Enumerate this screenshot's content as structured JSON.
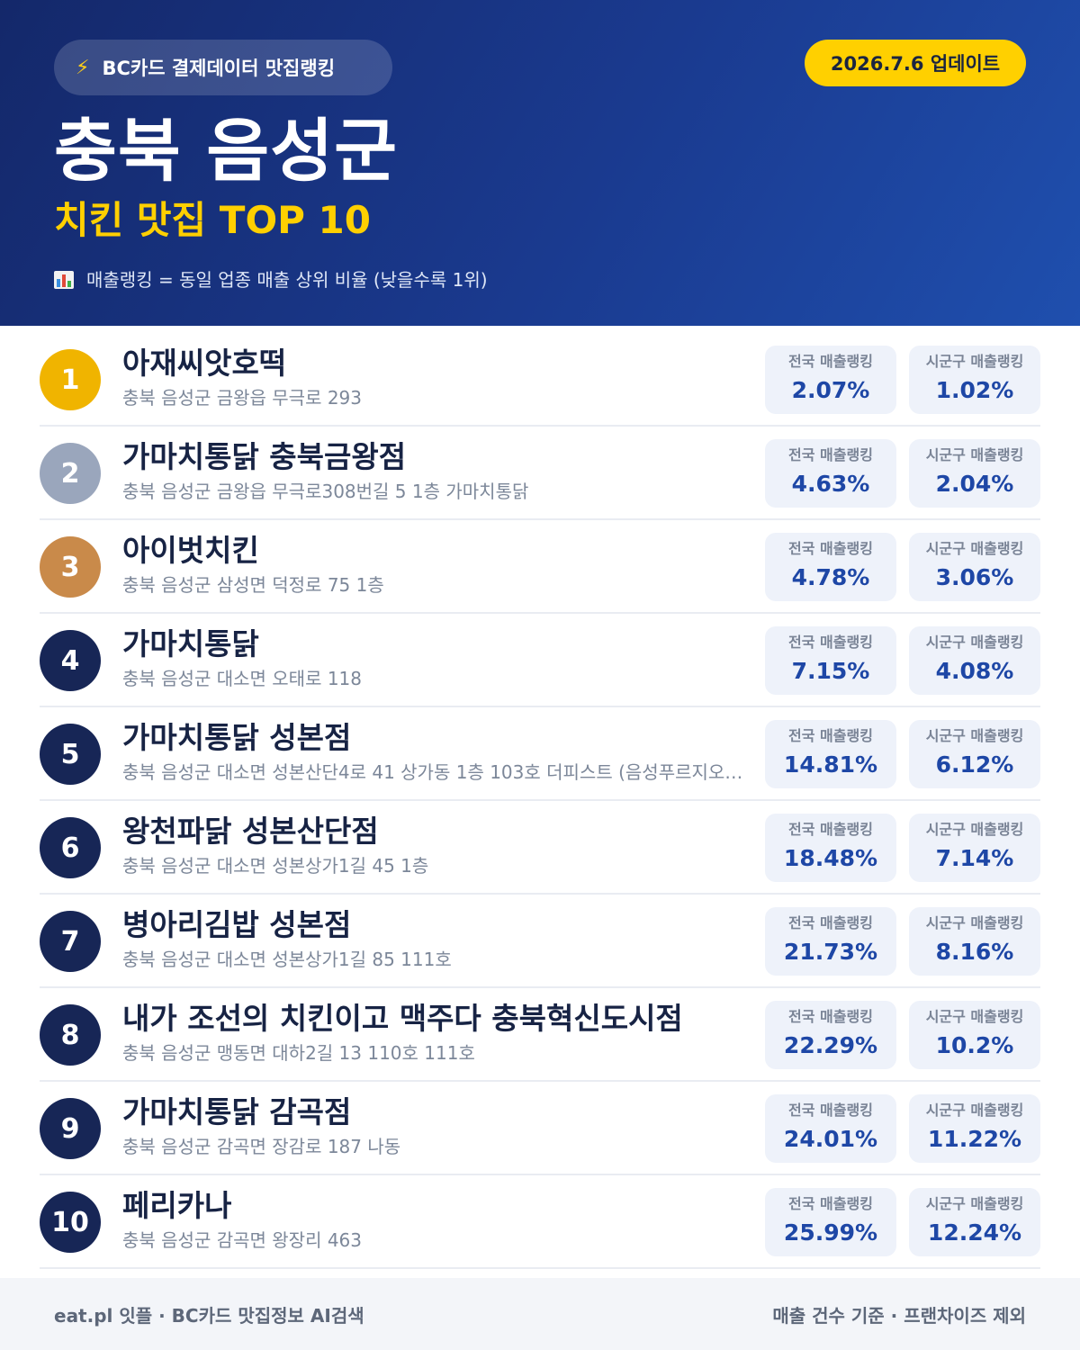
{
  "header": {
    "source_label": "BC카드 결제데이터 맛집랭킹",
    "update_label": "2026.7.6 업데이트",
    "title": "충북 음성군",
    "subtitle": "치킨 맛집 TOP 10",
    "note": "매출랭킹 = 동일 업종 매출 상위 비율 (낮을수록 1위)",
    "source_icon": "lightning-icon",
    "note_icon": "bar-chart-icon"
  },
  "stat_labels": {
    "national": "전국 매출랭킹",
    "regional": "시군구 매출랭킹"
  },
  "rank_colors": {
    "gold": "#f0b400",
    "silver": "#9aa6bc",
    "bronze": "#c98a4a",
    "default": "#172656"
  },
  "restaurants": [
    {
      "rank": "1",
      "name": "아재씨앗호떡",
      "address": "충북 음성군 금왕읍 무극로 293",
      "national": "2.07%",
      "regional": "1.02%"
    },
    {
      "rank": "2",
      "name": "가마치통닭 충북금왕점",
      "address": "충북 음성군 금왕읍 무극로308번길 5 1층 가마치통닭",
      "national": "4.63%",
      "regional": "2.04%"
    },
    {
      "rank": "3",
      "name": "아이벗치킨",
      "address": "충북 음성군 삼성면 덕정로 75 1층",
      "national": "4.78%",
      "regional": "3.06%"
    },
    {
      "rank": "4",
      "name": "가마치통닭",
      "address": "충북 음성군 대소면 오태로 118",
      "national": "7.15%",
      "regional": "4.08%"
    },
    {
      "rank": "5",
      "name": "가마치통닭 성본점",
      "address": "충북 음성군 대소면 성본산단4로 41 상가동 1층 103호 더피스트 (음성푸르지오…",
      "national": "14.81%",
      "regional": "6.12%"
    },
    {
      "rank": "6",
      "name": "왕천파닭 성본산단점",
      "address": "충북 음성군 대소면 성본상가1길 45 1층",
      "national": "18.48%",
      "regional": "7.14%"
    },
    {
      "rank": "7",
      "name": "병아리김밥 성본점",
      "address": "충북 음성군 대소면 성본상가1길 85 111호",
      "national": "21.73%",
      "regional": "8.16%"
    },
    {
      "rank": "8",
      "name": "내가 조선의 치킨이고 맥주다 충북혁신도시점",
      "address": "충북 음성군 맹동면 대하2길 13 110호 111호",
      "national": "22.29%",
      "regional": "10.2%"
    },
    {
      "rank": "9",
      "name": "가마치통닭 감곡점",
      "address": "충북 음성군 감곡면 장감로 187 나동",
      "national": "24.01%",
      "regional": "11.22%"
    },
    {
      "rank": "10",
      "name": "페리카나",
      "address": "충북 음성군 감곡면 왕장리 463",
      "national": "25.99%",
      "regional": "12.24%"
    }
  ],
  "footer": {
    "left": "eat.pl 잇플 · BC카드 맛집정보 AI검색",
    "right": "매출 건수 기준 · 프랜차이즈 제외"
  }
}
